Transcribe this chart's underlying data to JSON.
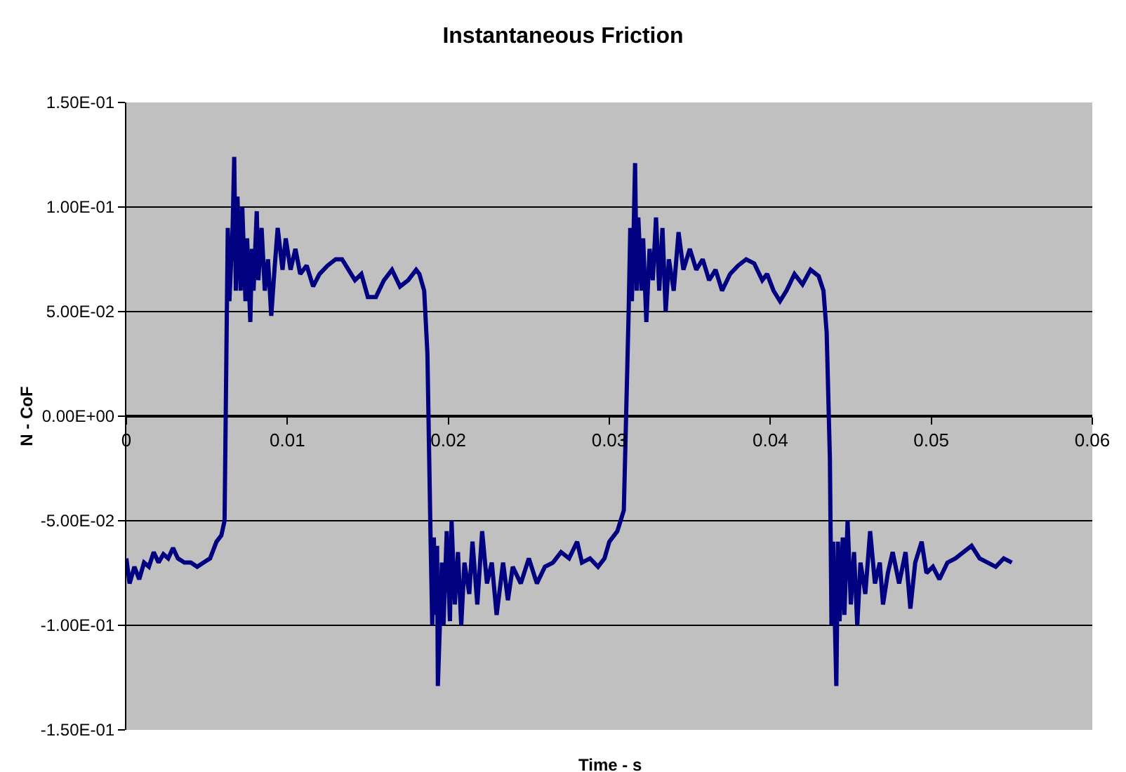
{
  "chart_data": {
    "type": "line",
    "title": "Instantaneous Friction",
    "xlabel": "Time - s",
    "ylabel": "N - CoF",
    "xlim": [
      0,
      0.06
    ],
    "xticks": [
      0,
      0.01,
      0.02,
      0.03,
      0.04,
      0.05,
      0.06
    ],
    "ylim": [
      -0.15,
      0.15
    ],
    "yticks": [
      {
        "value": -0.15,
        "label": "-1.50E-01"
      },
      {
        "value": -0.1,
        "label": "-1.00E-01"
      },
      {
        "value": -0.05,
        "label": "-5.00E-02"
      },
      {
        "value": 0,
        "label": "0.00E+00"
      },
      {
        "value": 0.05,
        "label": "5.00E-02"
      },
      {
        "value": 0.1,
        "label": "1.00E-01"
      },
      {
        "value": 0.15,
        "label": "1.50E-01"
      }
    ],
    "grid": "y",
    "marker": "none",
    "line_style": "solid",
    "x": [
      0,
      0.0002,
      0.0005,
      0.0008,
      0.0011,
      0.0014,
      0.0017,
      0.002,
      0.0023,
      0.0026,
      0.0029,
      0.0032,
      0.0036,
      0.004,
      0.0044,
      0.0048,
      0.0052,
      0.0056,
      0.0059,
      0.0061,
      0.0062,
      0.0063,
      0.0064,
      0.0066,
      0.0067,
      0.0068,
      0.0069,
      0.0071,
      0.0072,
      0.0074,
      0.0075,
      0.0077,
      0.0078,
      0.0079,
      0.0081,
      0.0082,
      0.0084,
      0.0086,
      0.0088,
      0.009,
      0.0092,
      0.0094,
      0.0097,
      0.0099,
      0.0102,
      0.0105,
      0.0108,
      0.0112,
      0.0116,
      0.012,
      0.0125,
      0.013,
      0.0134,
      0.0138,
      0.0142,
      0.0146,
      0.015,
      0.0155,
      0.016,
      0.0165,
      0.017,
      0.0175,
      0.018,
      0.0182,
      0.0185,
      0.0187,
      0.0189,
      0.019,
      0.0191,
      0.0192,
      0.0193,
      0.01935,
      0.0196,
      0.0197,
      0.0199,
      0.0201,
      0.0202,
      0.0204,
      0.0206,
      0.0208,
      0.021,
      0.0213,
      0.0215,
      0.0218,
      0.0221,
      0.0224,
      0.0227,
      0.023,
      0.0234,
      0.0237,
      0.024,
      0.0245,
      0.025,
      0.0255,
      0.026,
      0.0265,
      0.027,
      0.0275,
      0.028,
      0.0283,
      0.0288,
      0.0293,
      0.0297,
      0.03,
      0.0305,
      0.0309,
      0.0312,
      0.0313,
      0.0314,
      0.0315,
      0.0316,
      0.0317,
      0.0318,
      0.032,
      0.0321,
      0.0323,
      0.0325,
      0.0327,
      0.0329,
      0.0331,
      0.0333,
      0.0335,
      0.0337,
      0.034,
      0.0343,
      0.0346,
      0.035,
      0.0354,
      0.0358,
      0.0362,
      0.0366,
      0.037,
      0.0375,
      0.038,
      0.0385,
      0.039,
      0.0395,
      0.0398,
      0.0402,
      0.0406,
      0.041,
      0.0415,
      0.042,
      0.0425,
      0.043,
      0.0433,
      0.0435,
      0.0437,
      0.04375,
      0.0438,
      0.0439,
      0.044,
      0.0441,
      0.0442,
      0.0443,
      0.0445,
      0.0446,
      0.0448,
      0.045,
      0.0452,
      0.0454,
      0.0456,
      0.0459,
      0.0462,
      0.0465,
      0.0468,
      0.047,
      0.0473,
      0.0476,
      0.048,
      0.0484,
      0.0487,
      0.049,
      0.0494,
      0.0497,
      0.0501,
      0.0505,
      0.051,
      0.0515,
      0.052,
      0.0525,
      0.053,
      0.0535,
      0.054,
      0.0545,
      0.055
    ],
    "series": [
      {
        "color": "#000080",
        "values": [
          -0.068,
          -0.08,
          -0.072,
          -0.078,
          -0.07,
          -0.072,
          -0.065,
          -0.07,
          -0.066,
          -0.068,
          -0.063,
          -0.068,
          -0.07,
          -0.07,
          -0.072,
          -0.07,
          -0.068,
          -0.06,
          -0.057,
          -0.05,
          0.02,
          0.09,
          0.055,
          0.09,
          0.124,
          0.06,
          0.105,
          0.06,
          0.1,
          0.055,
          0.085,
          0.045,
          0.08,
          0.06,
          0.098,
          0.065,
          0.09,
          0.06,
          0.075,
          0.048,
          0.07,
          0.09,
          0.07,
          0.085,
          0.07,
          0.08,
          0.068,
          0.072,
          0.062,
          0.068,
          0.072,
          0.075,
          0.075,
          0.07,
          0.065,
          0.068,
          0.057,
          0.057,
          0.065,
          0.07,
          0.062,
          0.065,
          0.07,
          0.068,
          0.06,
          0.03,
          -0.06,
          -0.1,
          -0.058,
          -0.095,
          -0.062,
          -0.129,
          -0.07,
          -0.1,
          -0.055,
          -0.098,
          -0.05,
          -0.09,
          -0.065,
          -0.1,
          -0.07,
          -0.085,
          -0.06,
          -0.09,
          -0.055,
          -0.08,
          -0.07,
          -0.095,
          -0.07,
          -0.088,
          -0.072,
          -0.08,
          -0.068,
          -0.08,
          -0.072,
          -0.07,
          -0.065,
          -0.068,
          -0.06,
          -0.07,
          -0.068,
          -0.072,
          -0.068,
          -0.06,
          -0.055,
          -0.045,
          0.05,
          0.09,
          0.055,
          0.085,
          0.121,
          0.06,
          0.095,
          0.06,
          0.085,
          0.045,
          0.08,
          0.065,
          0.095,
          0.06,
          0.09,
          0.05,
          0.075,
          0.06,
          0.088,
          0.07,
          0.08,
          0.07,
          0.075,
          0.065,
          0.07,
          0.06,
          0.068,
          0.072,
          0.075,
          0.073,
          0.065,
          0.068,
          0.06,
          0.055,
          0.06,
          0.068,
          0.063,
          0.07,
          0.067,
          0.06,
          0.04,
          -0.02,
          -0.06,
          -0.1,
          -0.06,
          -0.095,
          -0.129,
          -0.06,
          -0.098,
          -0.058,
          -0.095,
          -0.05,
          -0.09,
          -0.065,
          -0.1,
          -0.07,
          -0.085,
          -0.055,
          -0.08,
          -0.07,
          -0.09,
          -0.075,
          -0.065,
          -0.08,
          -0.065,
          -0.092,
          -0.07,
          -0.06,
          -0.075,
          -0.072,
          -0.078,
          -0.07,
          -0.068,
          -0.065,
          -0.062,
          -0.068,
          -0.07,
          -0.072,
          -0.068,
          -0.07
        ]
      }
    ]
  }
}
